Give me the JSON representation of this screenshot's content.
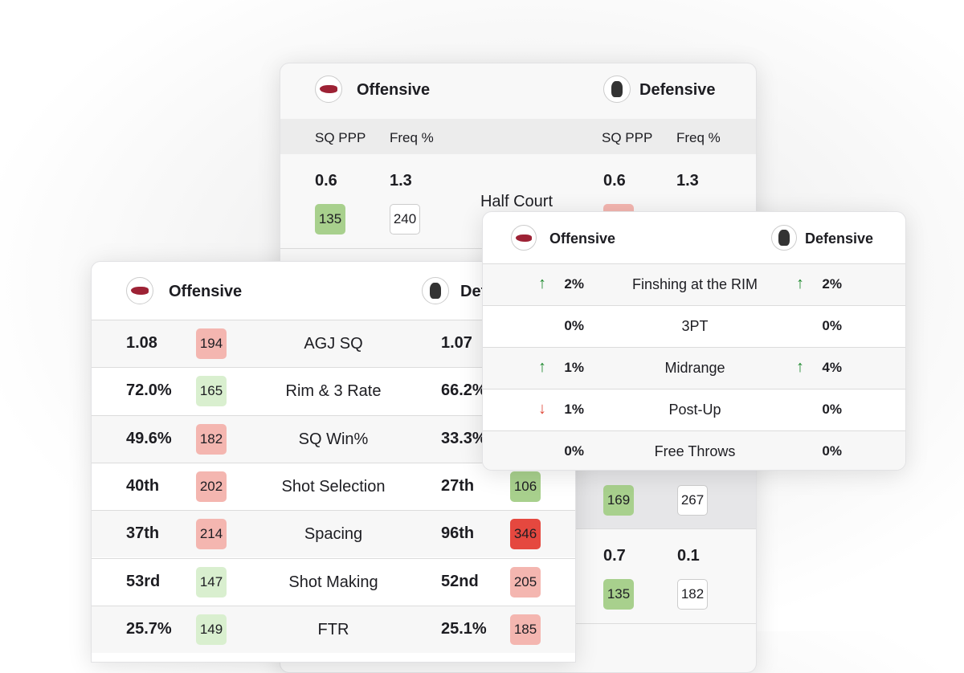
{
  "back_card": {
    "offensive": "Offensive",
    "defensive": "Defensive",
    "col_sq": "SQ PPP",
    "col_freq": "Freq %",
    "row1": {
      "label": "Half Court",
      "off_sq": "0.6",
      "off_freq": "1.3",
      "off_sq_rank": "135",
      "off_freq_rank": "240",
      "def_sq": "0.6",
      "def_freq": "1.3"
    },
    "row_mid": {
      "def_sq_rank": "169",
      "def_freq_rank": "267"
    },
    "row_low": {
      "def_sq": "0.7",
      "def_freq": "0.1",
      "def_sq_rank": "135",
      "def_freq_rank": "182"
    }
  },
  "left_card": {
    "offensive": "Offensive",
    "defensive": "Defensive",
    "rows": [
      {
        "label": "AGJ SQ",
        "off": "1.08",
        "off_rank": "194",
        "off_color": "b-lr",
        "def": "1.07",
        "def_rank": "",
        "def_color": ""
      },
      {
        "label": "Rim & 3 Rate",
        "off": "72.0%",
        "off_rank": "165",
        "off_color": "b-lg",
        "def": "66.2%",
        "def_rank": "",
        "def_color": ""
      },
      {
        "label": "SQ Win%",
        "off": "49.6%",
        "off_rank": "182",
        "off_color": "b-lr",
        "def": "33.3%",
        "def_rank": "",
        "def_color": ""
      },
      {
        "label": "Shot Selection",
        "off": "40th",
        "off_rank": "202",
        "off_color": "b-lr",
        "def": "27th",
        "def_rank": "106",
        "def_color": "b-g"
      },
      {
        "label": "Spacing",
        "off": "37th",
        "off_rank": "214",
        "off_color": "b-lr",
        "def": "96th",
        "def_rank": "346",
        "def_color": "b-r"
      },
      {
        "label": "Shot Making",
        "off": "53rd",
        "off_rank": "147",
        "off_color": "b-lg",
        "def": "52nd",
        "def_rank": "205",
        "def_color": "b-lr"
      },
      {
        "label": "FTR",
        "off": "25.7%",
        "off_rank": "149",
        "off_color": "b-lg",
        "def": "25.1%",
        "def_rank": "185",
        "def_color": "b-lr"
      }
    ]
  },
  "right_card": {
    "offensive": "Offensive",
    "defensive": "Defensive",
    "rows": [
      {
        "label": "Finshing at the RIM",
        "off": "2%",
        "off_trend": "up",
        "def": "2%",
        "def_trend": "up"
      },
      {
        "label": "3PT",
        "off": "0%",
        "off_trend": "",
        "def": "0%",
        "def_trend": ""
      },
      {
        "label": "Midrange",
        "off": "1%",
        "off_trend": "up",
        "def": "4%",
        "def_trend": "up"
      },
      {
        "label": "Post-Up",
        "off": "1%",
        "off_trend": "down",
        "def": "0%",
        "def_trend": ""
      },
      {
        "label": "Free Throws",
        "off": "0%",
        "off_trend": "",
        "def": "0%",
        "def_trend": ""
      }
    ]
  },
  "colors": {
    "up": "#1e8a2e",
    "down": "#e04a3a",
    "green": "#a8d08d",
    "light_green": "#d9efcf",
    "light_red": "#f4b6b0",
    "red": "#e5483f"
  }
}
